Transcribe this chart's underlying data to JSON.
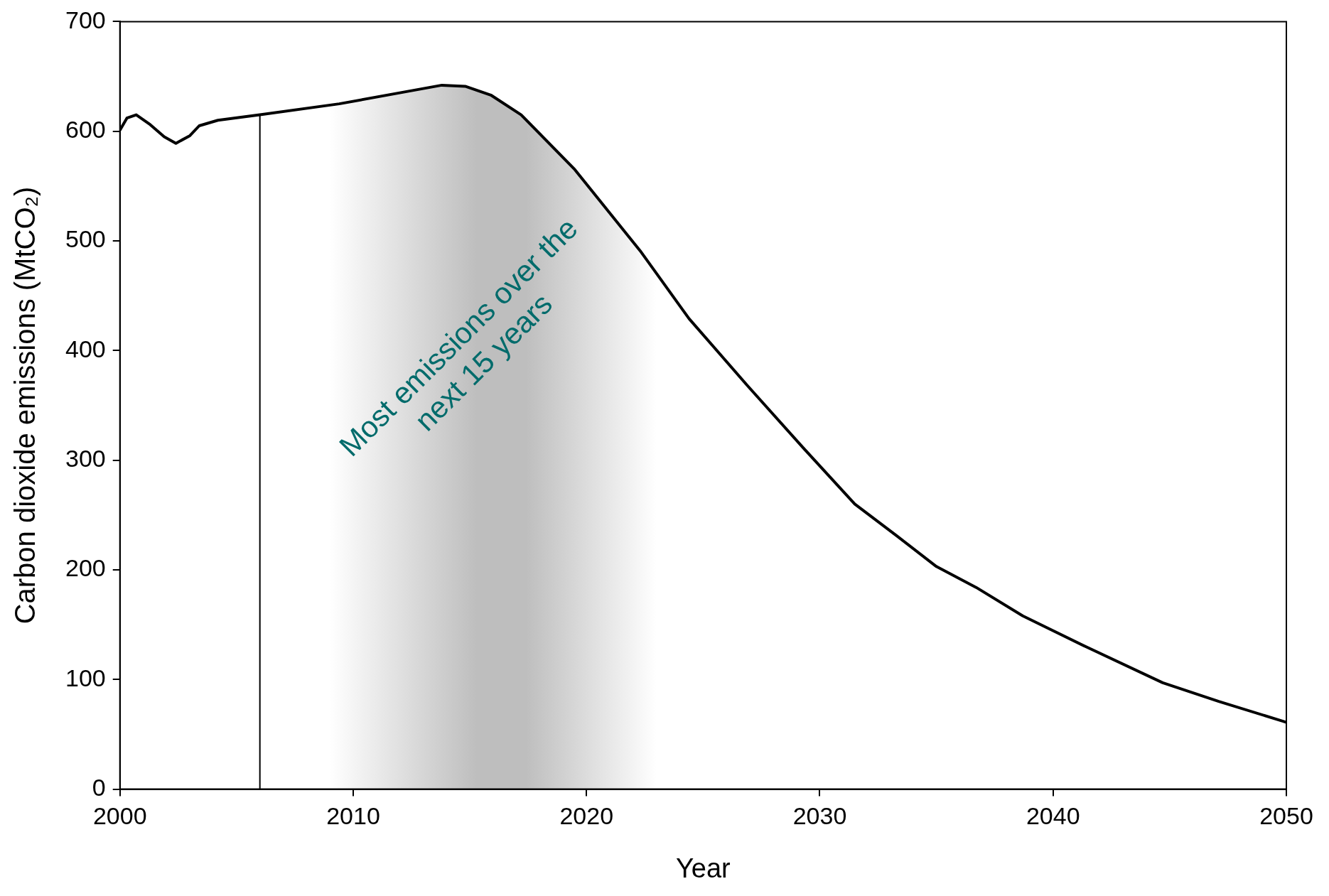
{
  "chart_data": {
    "type": "line",
    "xlabel": "Year",
    "ylabel": "Carbon dioxide emissions (MtCO₂)",
    "x": [
      2000,
      2000.3,
      2000.7,
      2001.3,
      2001.9,
      2002.4,
      2003.0,
      2003.4,
      2004.2,
      2006.0,
      2009.4,
      2012.5,
      2013.8,
      2014.8,
      2015.9,
      2017.2,
      2019.5,
      2022.3,
      2024.4,
      2026.9,
      2029.3,
      2031.5,
      2033.3,
      2035.0,
      2036.7,
      2038.7,
      2041.4,
      2044.7,
      2047.1,
      2050
    ],
    "series": [
      {
        "color": "#000000",
        "values": [
          601,
          612,
          615,
          606,
          595,
          589,
          596,
          605,
          610,
          615,
          625,
          637,
          642,
          641,
          633,
          615,
          565,
          491,
          429,
          368,
          311,
          260,
          231,
          203,
          184,
          158,
          130,
          97,
          80,
          61
        ]
      }
    ],
    "xlim": [
      2000,
      2050
    ],
    "xticks": [
      2000,
      2010,
      2020,
      2030,
      2040,
      2050
    ],
    "ylim": [
      0,
      700
    ],
    "yticks": [
      0,
      100,
      200,
      300,
      400,
      500,
      600,
      700
    ],
    "grid": false,
    "legend": false,
    "marker": "none",
    "line_style": "solid",
    "ref_lines": [
      {
        "axis": "x",
        "value": 2006,
        "color": "#000000"
      }
    ],
    "bands": [
      {
        "axis": "x",
        "from": 2009,
        "to": 2023,
        "color": "#bebebe",
        "label": "Most emissions over the next 15 years"
      }
    ]
  }
}
